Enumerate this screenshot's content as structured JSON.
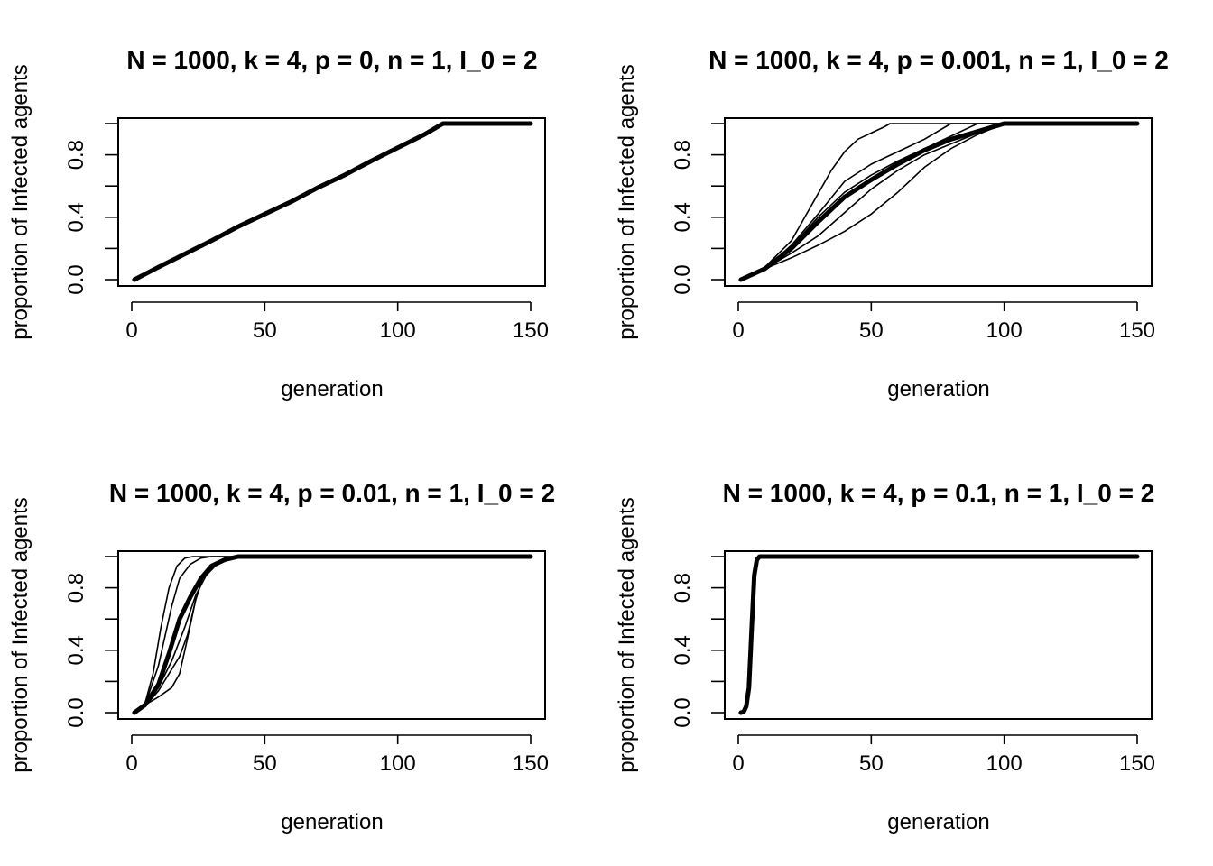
{
  "chart_data": [
    {
      "type": "line",
      "title": "N = 1000, k = 4, p = 0, n = 1, I_0 = 2",
      "xlabel": "generation",
      "ylabel": "proportion of Infected agents",
      "xlim": [
        0,
        150
      ],
      "ylim": [
        0,
        1
      ],
      "xticks": [
        0,
        50,
        100,
        150
      ],
      "yticks": [
        0.0,
        0.2,
        0.4,
        0.6,
        0.8,
        1.0
      ],
      "yticklabels": [
        "0.0",
        "",
        "0.4",
        "",
        "0.8",
        ""
      ],
      "runs": [
        {
          "x": [
            1,
            10,
            20,
            30,
            40,
            45,
            55,
            70,
            85,
            100,
            110,
            115,
            117,
            150
          ],
          "y": [
            0.0,
            0.07,
            0.16,
            0.25,
            0.34,
            0.39,
            0.46,
            0.59,
            0.72,
            0.85,
            0.94,
            0.99,
            1.0,
            1.0
          ]
        },
        {
          "x": [
            1,
            10,
            20,
            30,
            40,
            50,
            60,
            70,
            80,
            90,
            100,
            110,
            116,
            150
          ],
          "y": [
            0.0,
            0.08,
            0.17,
            0.26,
            0.35,
            0.43,
            0.51,
            0.6,
            0.68,
            0.77,
            0.85,
            0.93,
            1.0,
            1.0
          ]
        },
        {
          "x": [
            1,
            10,
            20,
            30,
            40,
            50,
            60,
            70,
            80,
            90,
            100,
            110,
            118,
            150
          ],
          "y": [
            0.0,
            0.08,
            0.16,
            0.25,
            0.33,
            0.41,
            0.49,
            0.58,
            0.66,
            0.75,
            0.84,
            0.92,
            1.0,
            1.0
          ]
        },
        {
          "x": [
            1,
            10,
            20,
            30,
            40,
            50,
            60,
            70,
            80,
            90,
            100,
            110,
            116,
            150
          ],
          "y": [
            0.0,
            0.08,
            0.17,
            0.25,
            0.34,
            0.42,
            0.5,
            0.59,
            0.67,
            0.76,
            0.84,
            0.93,
            1.0,
            1.0
          ]
        }
      ],
      "mean": {
        "x": [
          1,
          10,
          20,
          30,
          40,
          50,
          60,
          70,
          80,
          90,
          100,
          110,
          117,
          150
        ],
        "y": [
          0.0,
          0.08,
          0.165,
          0.25,
          0.34,
          0.42,
          0.5,
          0.59,
          0.67,
          0.76,
          0.845,
          0.93,
          1.0,
          1.0
        ]
      }
    },
    {
      "type": "line",
      "title": "N = 1000, k = 4, p = 0.001, n = 1, I_0 = 2",
      "xlabel": "generation",
      "ylabel": "proportion of Infected agents",
      "xlim": [
        0,
        150
      ],
      "ylim": [
        0,
        1
      ],
      "xticks": [
        0,
        50,
        100,
        150
      ],
      "yticks": [
        0.0,
        0.2,
        0.4,
        0.6,
        0.8,
        1.0
      ],
      "yticklabels": [
        "0.0",
        "",
        "0.4",
        "",
        "0.8",
        ""
      ],
      "runs": [
        {
          "x": [
            1,
            10,
            20,
            30,
            35,
            40,
            45,
            50,
            55,
            57,
            150
          ],
          "y": [
            0.0,
            0.08,
            0.25,
            0.55,
            0.7,
            0.82,
            0.9,
            0.94,
            0.98,
            1.0,
            1.0
          ]
        },
        {
          "x": [
            1,
            10,
            20,
            30,
            40,
            50,
            60,
            70,
            80,
            150
          ],
          "y": [
            0.0,
            0.07,
            0.22,
            0.42,
            0.63,
            0.74,
            0.82,
            0.9,
            1.0,
            1.0
          ]
        },
        {
          "x": [
            1,
            10,
            20,
            30,
            40,
            50,
            60,
            70,
            80,
            90,
            100,
            150
          ],
          "y": [
            0.0,
            0.07,
            0.14,
            0.22,
            0.31,
            0.42,
            0.56,
            0.72,
            0.84,
            0.93,
            1.0,
            1.0
          ]
        },
        {
          "x": [
            1,
            10,
            20,
            30,
            40,
            50,
            60,
            70,
            80,
            90,
            100,
            150
          ],
          "y": [
            0.0,
            0.07,
            0.17,
            0.28,
            0.43,
            0.58,
            0.7,
            0.8,
            0.87,
            0.94,
            1.0,
            1.0
          ]
        },
        {
          "x": [
            1,
            10,
            20,
            30,
            40,
            50,
            60,
            70,
            80,
            90,
            150
          ],
          "y": [
            0.0,
            0.07,
            0.21,
            0.4,
            0.56,
            0.67,
            0.76,
            0.84,
            0.92,
            1.0,
            1.0
          ]
        }
      ],
      "mean": {
        "x": [
          1,
          10,
          20,
          30,
          40,
          50,
          60,
          70,
          80,
          90,
          100,
          150
        ],
        "y": [
          0.0,
          0.07,
          0.2,
          0.37,
          0.53,
          0.64,
          0.74,
          0.83,
          0.9,
          0.95,
          1.0,
          1.0
        ]
      }
    },
    {
      "type": "line",
      "title": "N = 1000, k = 4, p = 0.01, n = 1, I_0 = 2",
      "xlabel": "generation",
      "ylabel": "proportion of Infected agents",
      "xlim": [
        0,
        150
      ],
      "ylim": [
        0,
        1
      ],
      "xticks": [
        0,
        50,
        100,
        150
      ],
      "yticks": [
        0.0,
        0.2,
        0.4,
        0.6,
        0.8,
        1.0
      ],
      "yticklabels": [
        "0.0",
        "",
        "0.4",
        "",
        "0.8",
        ""
      ],
      "runs": [
        {
          "x": [
            1,
            5,
            8,
            11,
            14,
            17,
            20,
            23,
            150
          ],
          "y": [
            0.0,
            0.06,
            0.25,
            0.55,
            0.8,
            0.94,
            0.99,
            1.0,
            1.0
          ]
        },
        {
          "x": [
            1,
            5,
            10,
            15,
            18,
            22,
            26,
            30,
            150
          ],
          "y": [
            0.0,
            0.05,
            0.3,
            0.68,
            0.86,
            0.95,
            0.99,
            1.0,
            1.0
          ]
        },
        {
          "x": [
            1,
            5,
            10,
            15,
            18,
            21,
            24,
            27,
            30,
            35,
            40,
            150
          ],
          "y": [
            0.0,
            0.05,
            0.1,
            0.16,
            0.25,
            0.48,
            0.72,
            0.88,
            0.94,
            0.98,
            1.0,
            1.0
          ]
        },
        {
          "x": [
            1,
            5,
            10,
            15,
            20,
            24,
            28,
            32,
            36,
            40,
            150
          ],
          "y": [
            0.0,
            0.04,
            0.16,
            0.33,
            0.55,
            0.75,
            0.88,
            0.95,
            0.99,
            1.0,
            1.0
          ]
        },
        {
          "x": [
            1,
            5,
            10,
            14,
            18,
            21,
            24,
            27,
            30,
            35,
            40,
            150
          ],
          "y": [
            0.0,
            0.04,
            0.14,
            0.25,
            0.36,
            0.5,
            0.72,
            0.88,
            0.95,
            0.99,
            1.0,
            1.0
          ]
        }
      ],
      "mean": {
        "x": [
          1,
          5,
          10,
          14,
          18,
          22,
          26,
          30,
          35,
          40,
          150
        ],
        "y": [
          0.0,
          0.05,
          0.18,
          0.38,
          0.6,
          0.74,
          0.86,
          0.94,
          0.98,
          1.0,
          1.0
        ]
      }
    },
    {
      "type": "line",
      "title": "N = 1000, k = 4, p = 0.1, n = 1, I_0 = 2",
      "xlabel": "generation",
      "ylabel": "proportion of Infected agents",
      "xlim": [
        0,
        150
      ],
      "ylim": [
        0,
        1
      ],
      "xticks": [
        0,
        50,
        100,
        150
      ],
      "yticks": [
        0.0,
        0.2,
        0.4,
        0.6,
        0.8,
        1.0
      ],
      "yticklabels": [
        "0.0",
        "",
        "0.4",
        "",
        "0.8",
        ""
      ],
      "runs": [
        {
          "x": [
            1,
            2,
            3,
            4,
            5,
            6,
            7,
            8,
            150
          ],
          "y": [
            0.0,
            0.01,
            0.05,
            0.2,
            0.6,
            0.92,
            0.99,
            1.0,
            1.0
          ]
        },
        {
          "x": [
            1,
            2,
            3,
            4,
            5,
            6,
            7,
            8,
            9,
            150
          ],
          "y": [
            0.0,
            0.0,
            0.03,
            0.12,
            0.45,
            0.85,
            0.97,
            1.0,
            1.0,
            1.0
          ]
        }
      ],
      "mean": {
        "x": [
          1,
          2,
          3,
          4,
          5,
          6,
          7,
          8,
          9,
          150
        ],
        "y": [
          0.0,
          0.005,
          0.04,
          0.16,
          0.52,
          0.88,
          0.98,
          1.0,
          1.0,
          1.0
        ]
      }
    }
  ]
}
